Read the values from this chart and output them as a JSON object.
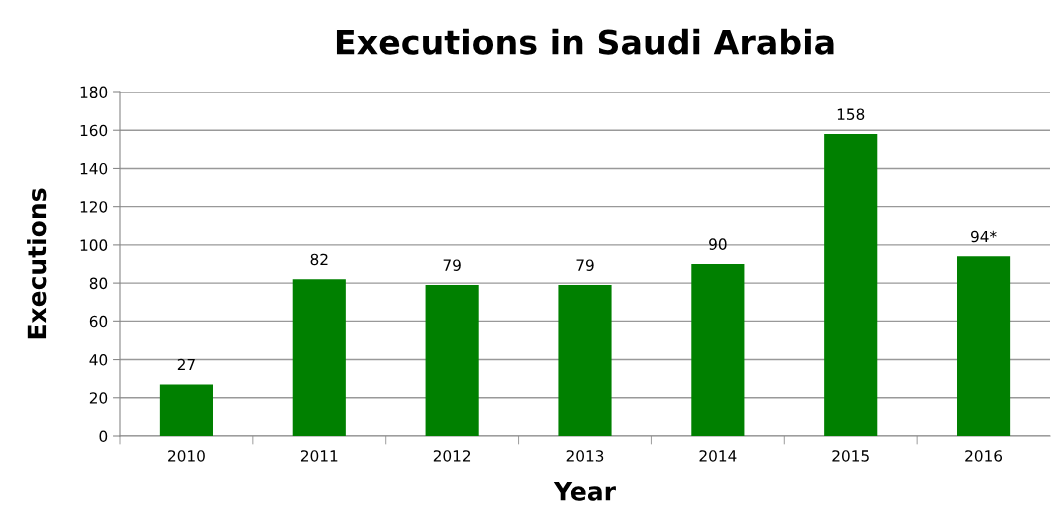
{
  "chart_data": {
    "type": "bar",
    "title": "Executions in Saudi Arabia",
    "xlabel": "Year",
    "ylabel": "Executions",
    "categories": [
      "2010",
      "2011",
      "2012",
      "2013",
      "2014",
      "2015",
      "2016"
    ],
    "values": [
      27,
      82,
      79,
      79,
      90,
      158,
      94
    ],
    "value_labels": [
      "27",
      "82",
      "79",
      "79",
      "90",
      "158",
      "94*"
    ],
    "color": "#008000",
    "ylim": [
      0,
      180
    ],
    "yticks": [
      0,
      20,
      40,
      60,
      80,
      100,
      120,
      140,
      160,
      180
    ],
    "grid": "y",
    "legend": false
  }
}
